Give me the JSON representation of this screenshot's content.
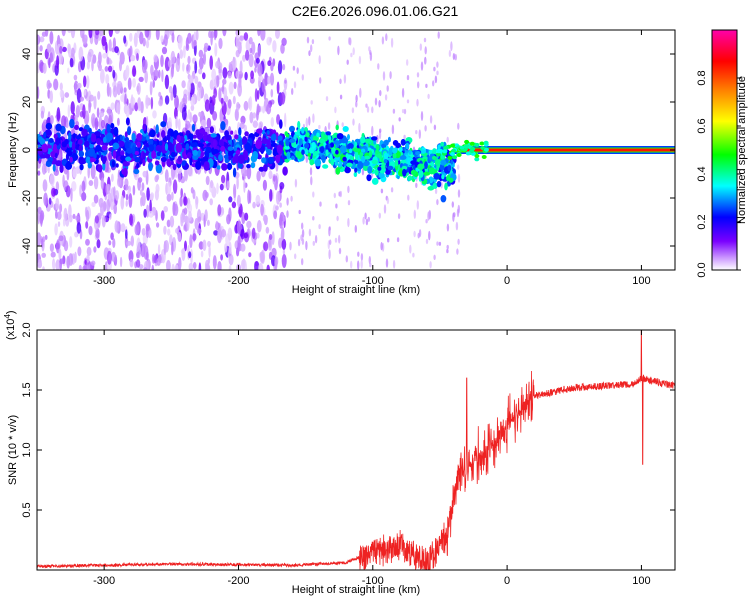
{
  "title": "C2E6.2026.096.01.06.G21",
  "chart_data": [
    {
      "type": "heatmap",
      "title": "C2E6.2026.096.01.06.G21",
      "xlabel": "Height of straight line (km)",
      "ylabel": "Frequency (Hz)",
      "xlim": [
        -350,
        125
      ],
      "ylim": [
        -50,
        50
      ],
      "x_ticks": [
        -300,
        -200,
        -100,
        0,
        100
      ],
      "y_ticks": [
        -40,
        -20,
        0,
        20,
        40
      ],
      "colorbar": {
        "label": "Normalized spectral amplitude",
        "range": [
          0,
          1
        ],
        "ticks": [
          "0.0",
          "0.2",
          "0.4",
          "0.6",
          "0.8"
        ],
        "tick_values": [
          0.0,
          0.2,
          0.4,
          0.6,
          0.8
        ],
        "colors": [
          "#ffffff",
          "#7a00ff",
          "#0000ff",
          "#00ffff",
          "#00ff00",
          "#ffff00",
          "#ff8000",
          "#ff0000",
          "#ff00aa"
        ]
      },
      "features": [
        {
          "x_range": [
            -350,
            -165
          ],
          "frequency_center": 0,
          "frequency_spread": 50,
          "amplitude": 0.15,
          "description_values": "broad"
        },
        {
          "x_range": [
            -165,
            -40
          ],
          "frequency_center_start": 3,
          "frequency_center_end": -8,
          "amplitude": 0.35
        },
        {
          "x_range": [
            -40,
            125
          ],
          "frequency_center": 0,
          "amplitude": 0.95
        }
      ]
    },
    {
      "type": "line",
      "xlabel": "Height of straight line (km)",
      "ylabel": "SNR (10 * v/v)",
      "y_multiplier": "(x10",
      "y_multiplier_exp": "4",
      "xlim": [
        -350,
        125
      ],
      "ylim": [
        0,
        2.0
      ],
      "x_ticks": [
        -300,
        -200,
        -100,
        0,
        100
      ],
      "y_ticks": [
        0.5,
        1.0,
        1.5,
        2.0
      ],
      "y_tick_labels": [
        "0.5",
        "1.0",
        "1.5",
        "2.0"
      ],
      "color": "#ee2222",
      "envelope_points": [
        {
          "x": -350,
          "y": 0.03
        },
        {
          "x": -250,
          "y": 0.05
        },
        {
          "x": -160,
          "y": 0.04
        },
        {
          "x": -120,
          "y": 0.06
        },
        {
          "x": -100,
          "y": 0.15
        },
        {
          "x": -80,
          "y": 0.2
        },
        {
          "x": -60,
          "y": 0.05
        },
        {
          "x": -45,
          "y": 0.3
        },
        {
          "x": -35,
          "y": 0.8
        },
        {
          "x": -25,
          "y": 0.9
        },
        {
          "x": -10,
          "y": 1.05
        },
        {
          "x": 0,
          "y": 1.2
        },
        {
          "x": 20,
          "y": 1.45
        },
        {
          "x": 50,
          "y": 1.52
        },
        {
          "x": 95,
          "y": 1.55
        },
        {
          "x": 100,
          "y": 1.6
        },
        {
          "x": 125,
          "y": 1.53
        }
      ],
      "spikes": [
        {
          "x": -30,
          "y": 1.6
        },
        {
          "x": 100,
          "y": 2.0
        },
        {
          "x": 101,
          "y": 0.88
        }
      ]
    }
  ]
}
